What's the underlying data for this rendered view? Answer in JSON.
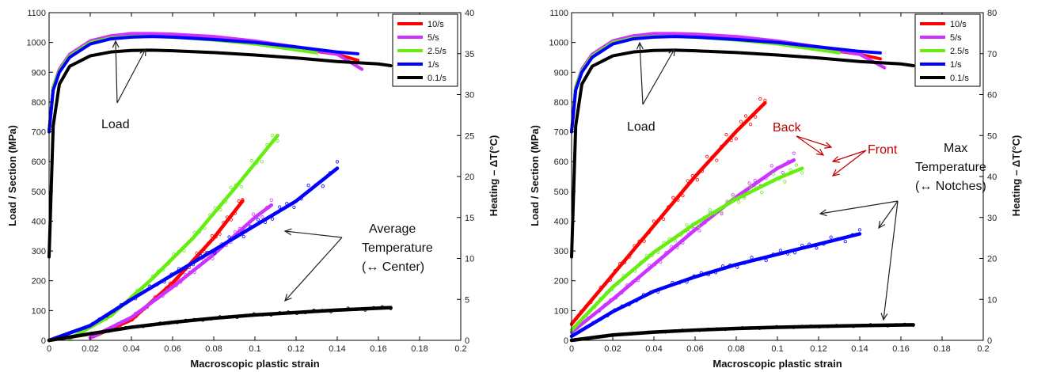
{
  "chart_data": [
    {
      "type": "line",
      "xlabel": "Macroscopic plastic strain",
      "ylabel_left": "Load / Section (MPa)",
      "ylabel_right": "Heating – ΔT(°C)",
      "xlim": [
        0,
        0.2
      ],
      "ylim_left": [
        0,
        1100
      ],
      "ylim_right": [
        0,
        40
      ],
      "x_ticks": [
        "0",
        "0.02",
        "0.04",
        "0.06",
        "0.08",
        "0.1",
        "0.12",
        "0.14",
        "0.16",
        "0.18",
        "0.2"
      ],
      "y_ticks_left": [
        "0",
        "100",
        "200",
        "300",
        "400",
        "500",
        "600",
        "700",
        "800",
        "900",
        "1000",
        "1100"
      ],
      "y_ticks_right": [
        "0",
        "5",
        "10",
        "15",
        "20",
        "25",
        "30",
        "35",
        "40"
      ],
      "legend": [
        {
          "label": "10/s",
          "color": "#ff0000"
        },
        {
          "label": "5/s",
          "color": "#cc33ff"
        },
        {
          "label": "2.5/s",
          "color": "#66ee11"
        },
        {
          "label": "1/s",
          "color": "#0000ff"
        },
        {
          "label": "0.1/s",
          "color": "#000000"
        }
      ],
      "load_series": [
        {
          "name": "10/s",
          "x": [
            0,
            0.002,
            0.005,
            0.01,
            0.02,
            0.03,
            0.04,
            0.05,
            0.06,
            0.08,
            0.1,
            0.12,
            0.14,
            0.15
          ],
          "y": [
            700,
            850,
            910,
            960,
            1005,
            1022,
            1028,
            1028,
            1025,
            1015,
            1000,
            980,
            960,
            940
          ]
        },
        {
          "name": "5/s",
          "x": [
            0,
            0.002,
            0.005,
            0.01,
            0.02,
            0.03,
            0.04,
            0.05,
            0.06,
            0.08,
            0.1,
            0.12,
            0.14,
            0.152
          ],
          "y": [
            700,
            850,
            910,
            960,
            1005,
            1022,
            1030,
            1030,
            1028,
            1020,
            1005,
            985,
            960,
            910
          ]
        },
        {
          "name": "2.5/s",
          "x": [
            0,
            0.002,
            0.005,
            0.01,
            0.02,
            0.03,
            0.04,
            0.05,
            0.06,
            0.08,
            0.1,
            0.12,
            0.13
          ],
          "y": [
            700,
            850,
            905,
            955,
            1000,
            1015,
            1020,
            1020,
            1018,
            1008,
            995,
            975,
            965
          ]
        },
        {
          "name": "1/s",
          "x": [
            0,
            0.002,
            0.005,
            0.01,
            0.02,
            0.03,
            0.04,
            0.05,
            0.06,
            0.08,
            0.1,
            0.12,
            0.14,
            0.15
          ],
          "y": [
            700,
            840,
            900,
            950,
            995,
            1012,
            1018,
            1020,
            1018,
            1010,
            1000,
            985,
            968,
            962
          ]
        },
        {
          "name": "0.1/s",
          "x": [
            0,
            0.002,
            0.005,
            0.01,
            0.02,
            0.03,
            0.04,
            0.05,
            0.06,
            0.08,
            0.1,
            0.12,
            0.14,
            0.16,
            0.166
          ],
          "y": [
            280,
            720,
            860,
            920,
            955,
            968,
            973,
            974,
            972,
            966,
            958,
            948,
            936,
            928,
            922
          ]
        }
      ],
      "temp_series": [
        {
          "name": "10/s",
          "x": [
            0.02,
            0.04,
            0.06,
            0.08,
            0.094
          ],
          "y": [
            0.3,
            2.5,
            7.0,
            12.5,
            17.0
          ]
        },
        {
          "name": "5/s",
          "x": [
            0.02,
            0.04,
            0.06,
            0.08,
            0.1,
            0.108
          ],
          "y": [
            0.3,
            2.8,
            6.5,
            10.5,
            15.0,
            16.5
          ]
        },
        {
          "name": "2.5/s",
          "x": [
            0.01,
            0.03,
            0.05,
            0.07,
            0.09,
            0.111
          ],
          "y": [
            0.2,
            3.0,
            7.5,
            12.5,
            18.5,
            25.0
          ]
        },
        {
          "name": "1/s",
          "x": [
            0,
            0.02,
            0.04,
            0.06,
            0.08,
            0.1,
            0.12,
            0.14
          ],
          "y": [
            0,
            1.8,
            5.0,
            8.0,
            11.0,
            14.0,
            17.0,
            21.0
          ]
        },
        {
          "name": "0.1/s",
          "x": [
            0,
            0.02,
            0.04,
            0.06,
            0.08,
            0.1,
            0.12,
            0.14,
            0.166
          ],
          "y": [
            0,
            0.8,
            1.6,
            2.2,
            2.7,
            3.1,
            3.4,
            3.7,
            4.0
          ]
        }
      ],
      "annotations": [
        "Load",
        "Average",
        "Temperature",
        "(↔ Center)"
      ]
    },
    {
      "type": "line",
      "xlabel": "Macroscopic plastic strain",
      "ylabel_left": "Load / Section (MPa)",
      "ylabel_right": "Heating – ΔT(°C)",
      "xlim": [
        0,
        0.2
      ],
      "ylim_left": [
        0,
        1100
      ],
      "ylim_right": [
        0,
        80
      ],
      "x_ticks": [
        "0",
        "0.02",
        "0.04",
        "0.06",
        "0.08",
        "0.1",
        "0.12",
        "0.14",
        "0.16",
        "0.18",
        "0.2"
      ],
      "y_ticks_left": [
        "0",
        "100",
        "200",
        "300",
        "400",
        "500",
        "600",
        "700",
        "800",
        "900",
        "1000",
        "1100"
      ],
      "y_ticks_right": [
        "0",
        "10",
        "20",
        "30",
        "40",
        "50",
        "60",
        "70",
        "80"
      ],
      "legend": [
        {
          "label": "10/s",
          "color": "#ff0000"
        },
        {
          "label": "5/s",
          "color": "#cc33ff"
        },
        {
          "label": "2.5/s",
          "color": "#66ee11"
        },
        {
          "label": "1/s",
          "color": "#0000ff"
        },
        {
          "label": "0.1/s",
          "color": "#000000"
        }
      ],
      "load_series": [
        {
          "name": "10/s",
          "x": [
            0,
            0.002,
            0.005,
            0.01,
            0.02,
            0.03,
            0.04,
            0.05,
            0.06,
            0.08,
            0.1,
            0.12,
            0.14,
            0.15
          ],
          "y": [
            700,
            850,
            910,
            960,
            1005,
            1022,
            1028,
            1028,
            1025,
            1015,
            1000,
            980,
            960,
            945
          ]
        },
        {
          "name": "5/s",
          "x": [
            0,
            0.002,
            0.005,
            0.01,
            0.02,
            0.03,
            0.04,
            0.05,
            0.06,
            0.08,
            0.1,
            0.12,
            0.14,
            0.152
          ],
          "y": [
            700,
            850,
            910,
            960,
            1005,
            1022,
            1030,
            1030,
            1028,
            1020,
            1005,
            985,
            960,
            915
          ]
        },
        {
          "name": "2.5/s",
          "x": [
            0,
            0.002,
            0.005,
            0.01,
            0.02,
            0.03,
            0.04,
            0.05,
            0.06,
            0.08,
            0.1,
            0.12,
            0.13
          ],
          "y": [
            700,
            850,
            905,
            955,
            1000,
            1015,
            1020,
            1020,
            1018,
            1008,
            995,
            975,
            965
          ]
        },
        {
          "name": "1/s",
          "x": [
            0,
            0.002,
            0.005,
            0.01,
            0.02,
            0.03,
            0.04,
            0.05,
            0.06,
            0.08,
            0.1,
            0.12,
            0.14,
            0.15
          ],
          "y": [
            700,
            840,
            900,
            950,
            995,
            1012,
            1018,
            1020,
            1018,
            1010,
            1000,
            985,
            970,
            965
          ]
        },
        {
          "name": "0.1/s",
          "x": [
            0,
            0.002,
            0.005,
            0.01,
            0.02,
            0.03,
            0.04,
            0.05,
            0.06,
            0.08,
            0.1,
            0.12,
            0.14,
            0.16,
            0.166
          ],
          "y": [
            280,
            720,
            860,
            920,
            955,
            968,
            973,
            974,
            972,
            966,
            958,
            948,
            936,
            928,
            922
          ]
        }
      ],
      "temp_series": [
        {
          "name": "10/s",
          "x": [
            0,
            0.02,
            0.04,
            0.06,
            0.08,
            0.094
          ],
          "y": [
            4.0,
            16.0,
            28.0,
            40.0,
            51.0,
            58.0
          ]
        },
        {
          "name": "5/s",
          "x": [
            0,
            0.02,
            0.04,
            0.06,
            0.08,
            0.1,
            0.108
          ],
          "y": [
            2.0,
            10.0,
            18.5,
            27.0,
            35.0,
            42.0,
            44.0
          ]
        },
        {
          "name": "2.5/s",
          "x": [
            0,
            0.02,
            0.04,
            0.06,
            0.08,
            0.1,
            0.112
          ],
          "y": [
            2.5,
            13.0,
            21.5,
            28.5,
            34.5,
            39.5,
            42.0
          ]
        },
        {
          "name": "1/s",
          "x": [
            0,
            0.02,
            0.04,
            0.06,
            0.08,
            0.1,
            0.12,
            0.14
          ],
          "y": [
            1.0,
            7.0,
            12.0,
            15.5,
            18.5,
            21.0,
            23.5,
            26.0
          ]
        },
        {
          "name": "0.1/s",
          "x": [
            0,
            0.02,
            0.04,
            0.06,
            0.08,
            0.1,
            0.12,
            0.14,
            0.166
          ],
          "y": [
            0,
            1.3,
            2.0,
            2.5,
            2.9,
            3.2,
            3.4,
            3.6,
            3.8
          ]
        }
      ],
      "annotations": [
        "Load",
        "Back",
        "Front",
        "Max",
        "Temperature",
        "(↔ Notches)"
      ]
    }
  ]
}
